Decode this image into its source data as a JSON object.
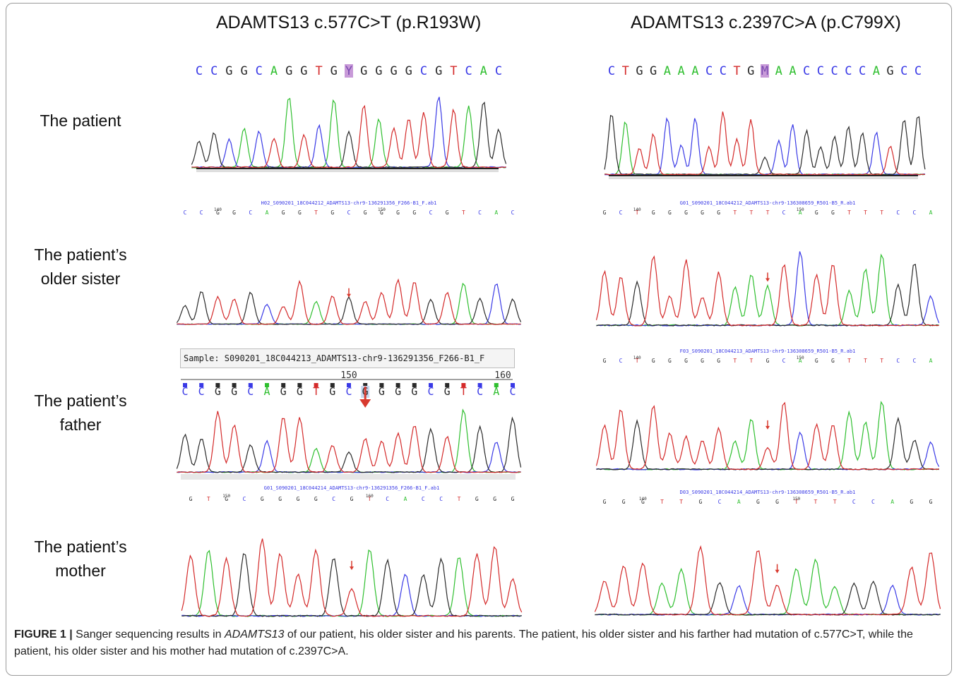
{
  "col_titles": [
    "ADAMTS13 c.577C>T (p.R193W)",
    "ADAMTS13 c.2397C>A (p.C799X)"
  ],
  "row_labels": [
    [
      "The patient"
    ],
    [
      "The patient’s",
      "older sister"
    ],
    [
      "The patient’s",
      "father"
    ],
    [
      "The patient’s",
      "mother"
    ]
  ],
  "panels": [
    {
      "id": "p-left-1",
      "seq": "CCGGCAGGTGYGGGGCGTCAC",
      "highlight": 10,
      "seq_style": "big",
      "peaks": [
        2,
        2,
        1,
        0,
        1,
        3,
        0,
        3,
        1,
        0,
        2,
        3,
        0,
        3,
        3,
        3,
        1,
        3,
        0,
        2,
        2
      ],
      "marker": false
    },
    {
      "id": "p-right-1",
      "seq": "CTGGAAACCTGMAACCCCCAGCC",
      "highlight": 11,
      "seq_style": "big",
      "peaks": [
        2,
        0,
        3,
        3,
        1,
        1,
        1,
        3,
        3,
        3,
        3,
        2,
        1,
        1,
        2,
        2,
        2,
        2,
        2,
        1,
        3,
        2,
        2
      ],
      "marker": false
    },
    {
      "id": "p-left-2",
      "header": "H02_S090201_18C044212_ADAMTS13-chr9-136291356_F266-B1_F.ab1",
      "seq": "CCGGCAGGTGCGGGGCGTCAC",
      "highlight": -1,
      "seq_style": "small",
      "ticks": [
        "140",
        "150"
      ],
      "peaks": [
        2,
        2,
        3,
        3,
        2,
        1,
        3,
        3,
        0,
        3,
        2,
        3,
        3,
        3,
        3,
        2,
        3,
        0,
        2,
        1,
        2
      ],
      "marker": true
    },
    {
      "id": "p-right-2",
      "header": "G01_S090201_18C044212_ADAMTS13-chr9-136308659_R501-B5_R.ab1",
      "seq": "GCTGGGGGTTTCAGGTTTCCA",
      "highlight": -1,
      "seq_style": "small",
      "ticks": [
        "140",
        "150"
      ],
      "peaks": [
        3,
        3,
        2,
        3,
        3,
        3,
        3,
        3,
        0,
        0,
        0,
        3,
        1,
        3,
        3,
        0,
        0,
        0,
        2,
        2,
        1
      ],
      "marker": true
    },
    {
      "id": "p-left-3",
      "sample": "Sample: S090201_18C044213_ADAMTS13-chr9-136291356_F266-B1_F",
      "ruler": [
        "150",
        "160"
      ],
      "seq": "CCGGCAGGTGCGGGGCGTCAC",
      "highlight": 11,
      "seq_style": "medium",
      "peaks": [
        2,
        2,
        3,
        3,
        2,
        1,
        3,
        3,
        0,
        3,
        2,
        3,
        3,
        3,
        3,
        2,
        3,
        0,
        2,
        1,
        2
      ],
      "marker": true
    },
    {
      "id": "p-right-3",
      "header": "F03_S090201_18C044213_ADAMTS13-chr9-136308659_R501-B5_R.ab1",
      "seq": "GCTGGGGGTTGCAGGTTTCCA",
      "highlight": -1,
      "seq_style": "small",
      "ticks": [
        "140",
        "150"
      ],
      "peaks": [
        3,
        3,
        2,
        3,
        3,
        3,
        3,
        3,
        0,
        0,
        3,
        3,
        1,
        3,
        3,
        0,
        0,
        0,
        2,
        2,
        1
      ],
      "marker": true
    },
    {
      "id": "p-left-4",
      "header": "G01_S090201_18C044214_ADAMTS13-chr9-136291356_F266-B1_F.ab1",
      "seq": "GTGCGGGGCGTCACCTGGG",
      "highlight": -1,
      "seq_style": "small",
      "ticks": [
        "150",
        "160"
      ],
      "peaks": [
        3,
        0,
        3,
        2,
        3,
        3,
        3,
        3,
        2,
        3,
        0,
        2,
        1,
        2,
        2,
        0,
        3,
        3,
        3
      ],
      "marker": true
    },
    {
      "id": "p-right-4",
      "header": "D03_S090201_18C044214_ADAMTS13-chr9-136308659_R501-B5_R.ab1",
      "seq": "GGGTTGCAGGTTTCCAGG",
      "highlight": -1,
      "seq_style": "small",
      "ticks": [
        "140",
        "150"
      ],
      "peaks": [
        3,
        3,
        3,
        0,
        0,
        3,
        2,
        1,
        3,
        3,
        0,
        0,
        0,
        2,
        2,
        1,
        3,
        3
      ],
      "marker": true
    }
  ],
  "caption": {
    "label": "FIGURE 1 |",
    "text_1": " Sanger sequencing results in ",
    "gene": "ADAMTS13",
    "text_2": " of our patient, his older sister and his parents. The patient, his older sister and his farther had mutation of c.577C>T, while the patient, his older sister and his mother had mutation of c.2397C>A."
  },
  "colors": {
    "A": "#2fbf2f",
    "C": "#3a3ae6",
    "G": "#2a2a2a",
    "T": "#d42a2a",
    "marker": "#d83a2f"
  }
}
